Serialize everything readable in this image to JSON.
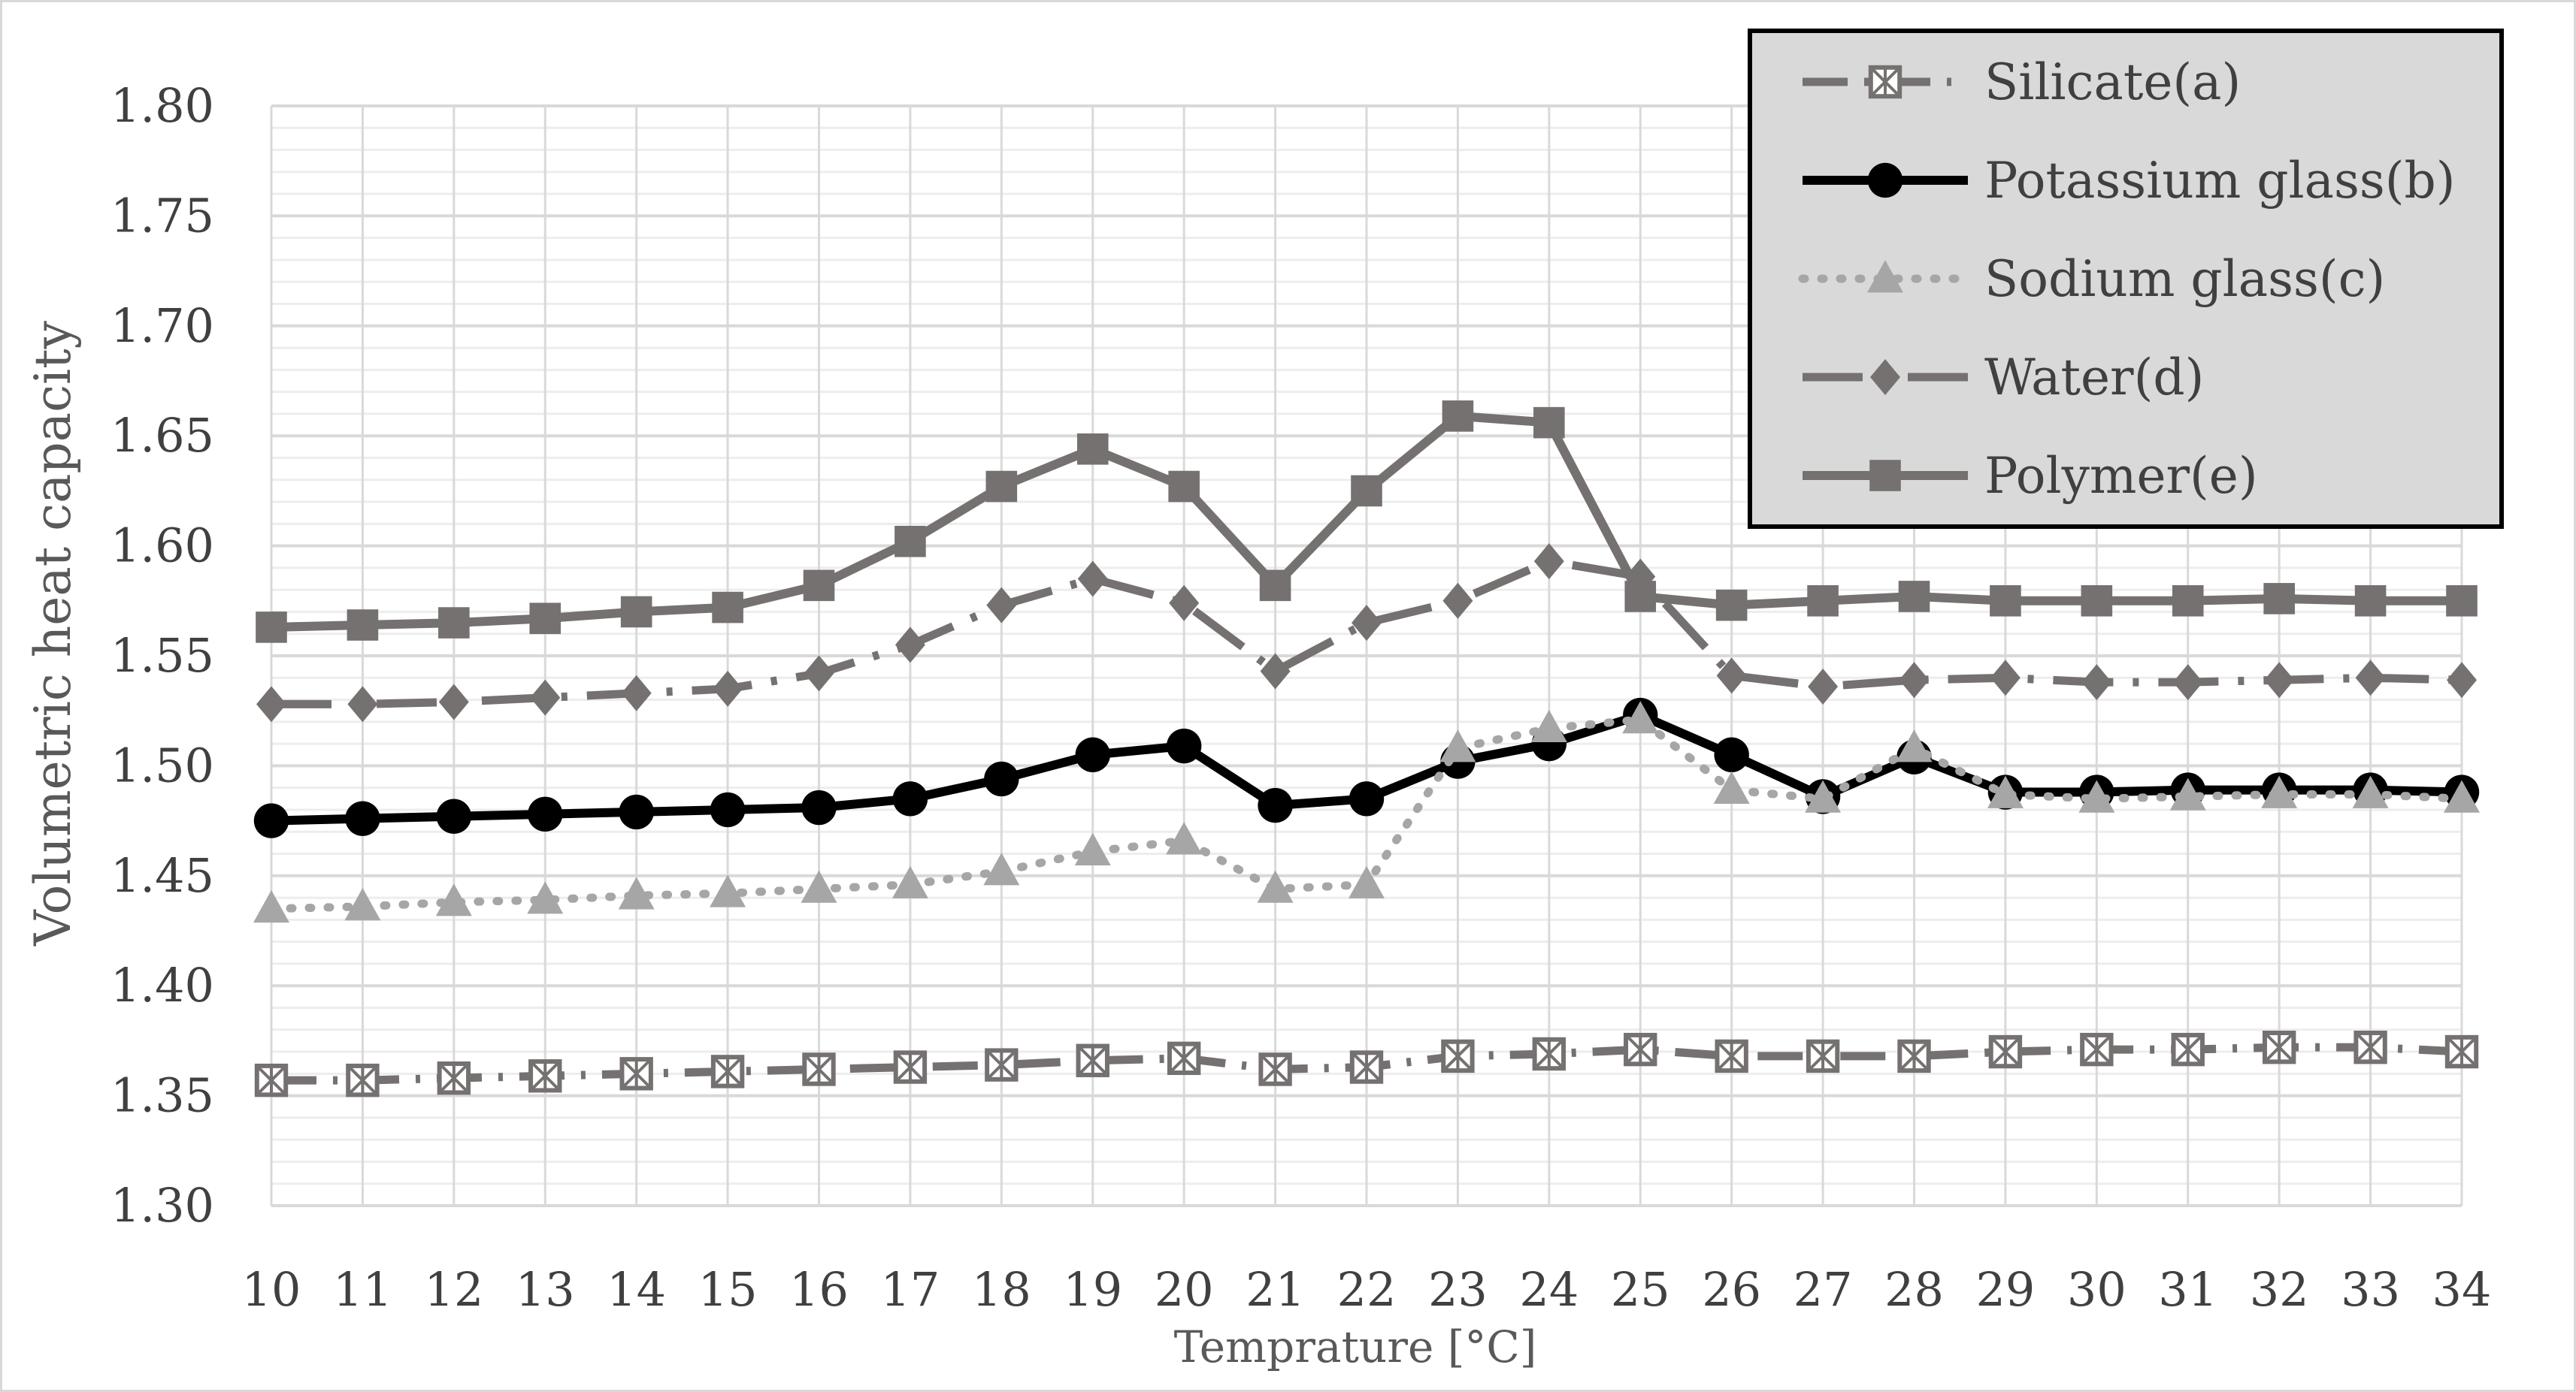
{
  "chart_data": {
    "type": "line",
    "title": "",
    "xlabel": "Temprature [°C]",
    "ylabel": "Volumetric heat capacity",
    "x": [
      10,
      11,
      12,
      13,
      14,
      15,
      16,
      17,
      18,
      19,
      20,
      21,
      22,
      23,
      24,
      25,
      26,
      27,
      28,
      29,
      30,
      31,
      32,
      33,
      34
    ],
    "ylim": [
      1.3,
      1.8
    ],
    "yticks": [
      "1.30",
      "1.35",
      "1.40",
      "1.45",
      "1.50",
      "1.55",
      "1.60",
      "1.65",
      "1.70",
      "1.75",
      "1.80"
    ],
    "grid": true,
    "legend_position": "top-right",
    "series": [
      {
        "name": "Silicate(a)",
        "color": "#767171",
        "line": "dash-dot",
        "marker": "boxed-x",
        "values": [
          1.357,
          1.357,
          1.358,
          1.359,
          1.36,
          1.361,
          1.362,
          1.363,
          1.364,
          1.366,
          1.367,
          1.362,
          1.363,
          1.368,
          1.369,
          1.371,
          1.368,
          1.368,
          1.368,
          1.37,
          1.371,
          1.371,
          1.372,
          1.372,
          1.37
        ]
      },
      {
        "name": "Potassium glass(b)",
        "color": "#000000",
        "line": "solid",
        "marker": "circle",
        "values": [
          1.475,
          1.476,
          1.477,
          1.478,
          1.479,
          1.48,
          1.481,
          1.485,
          1.494,
          1.505,
          1.509,
          1.482,
          1.485,
          1.502,
          1.51,
          1.523,
          1.505,
          1.486,
          1.504,
          1.488,
          1.488,
          1.489,
          1.489,
          1.489,
          1.488
        ]
      },
      {
        "name": "Sodium glass(c)",
        "color": "#a6a6a6",
        "line": "dotted",
        "marker": "triangle",
        "values": [
          1.435,
          1.436,
          1.438,
          1.439,
          1.441,
          1.442,
          1.444,
          1.446,
          1.452,
          1.461,
          1.466,
          1.444,
          1.446,
          1.508,
          1.517,
          1.521,
          1.489,
          1.485,
          1.508,
          1.487,
          1.485,
          1.486,
          1.487,
          1.487,
          1.485
        ]
      },
      {
        "name": "Water(d)",
        "color": "#767171",
        "line": "long-dash-dot",
        "marker": "diamond",
        "values": [
          1.528,
          1.528,
          1.529,
          1.531,
          1.533,
          1.535,
          1.542,
          1.555,
          1.573,
          1.585,
          1.574,
          1.543,
          1.565,
          1.575,
          1.593,
          1.586,
          1.541,
          1.536,
          1.539,
          1.54,
          1.538,
          1.538,
          1.539,
          1.54,
          1.539
        ]
      },
      {
        "name": "Polymer(e)",
        "color": "#767171",
        "line": "solid",
        "marker": "square",
        "values": [
          1.563,
          1.564,
          1.565,
          1.567,
          1.57,
          1.572,
          1.582,
          1.602,
          1.627,
          1.644,
          1.627,
          1.582,
          1.625,
          1.659,
          1.656,
          1.577,
          1.573,
          1.575,
          1.577,
          1.575,
          1.575,
          1.575,
          1.576,
          1.575,
          1.575
        ]
      }
    ]
  }
}
